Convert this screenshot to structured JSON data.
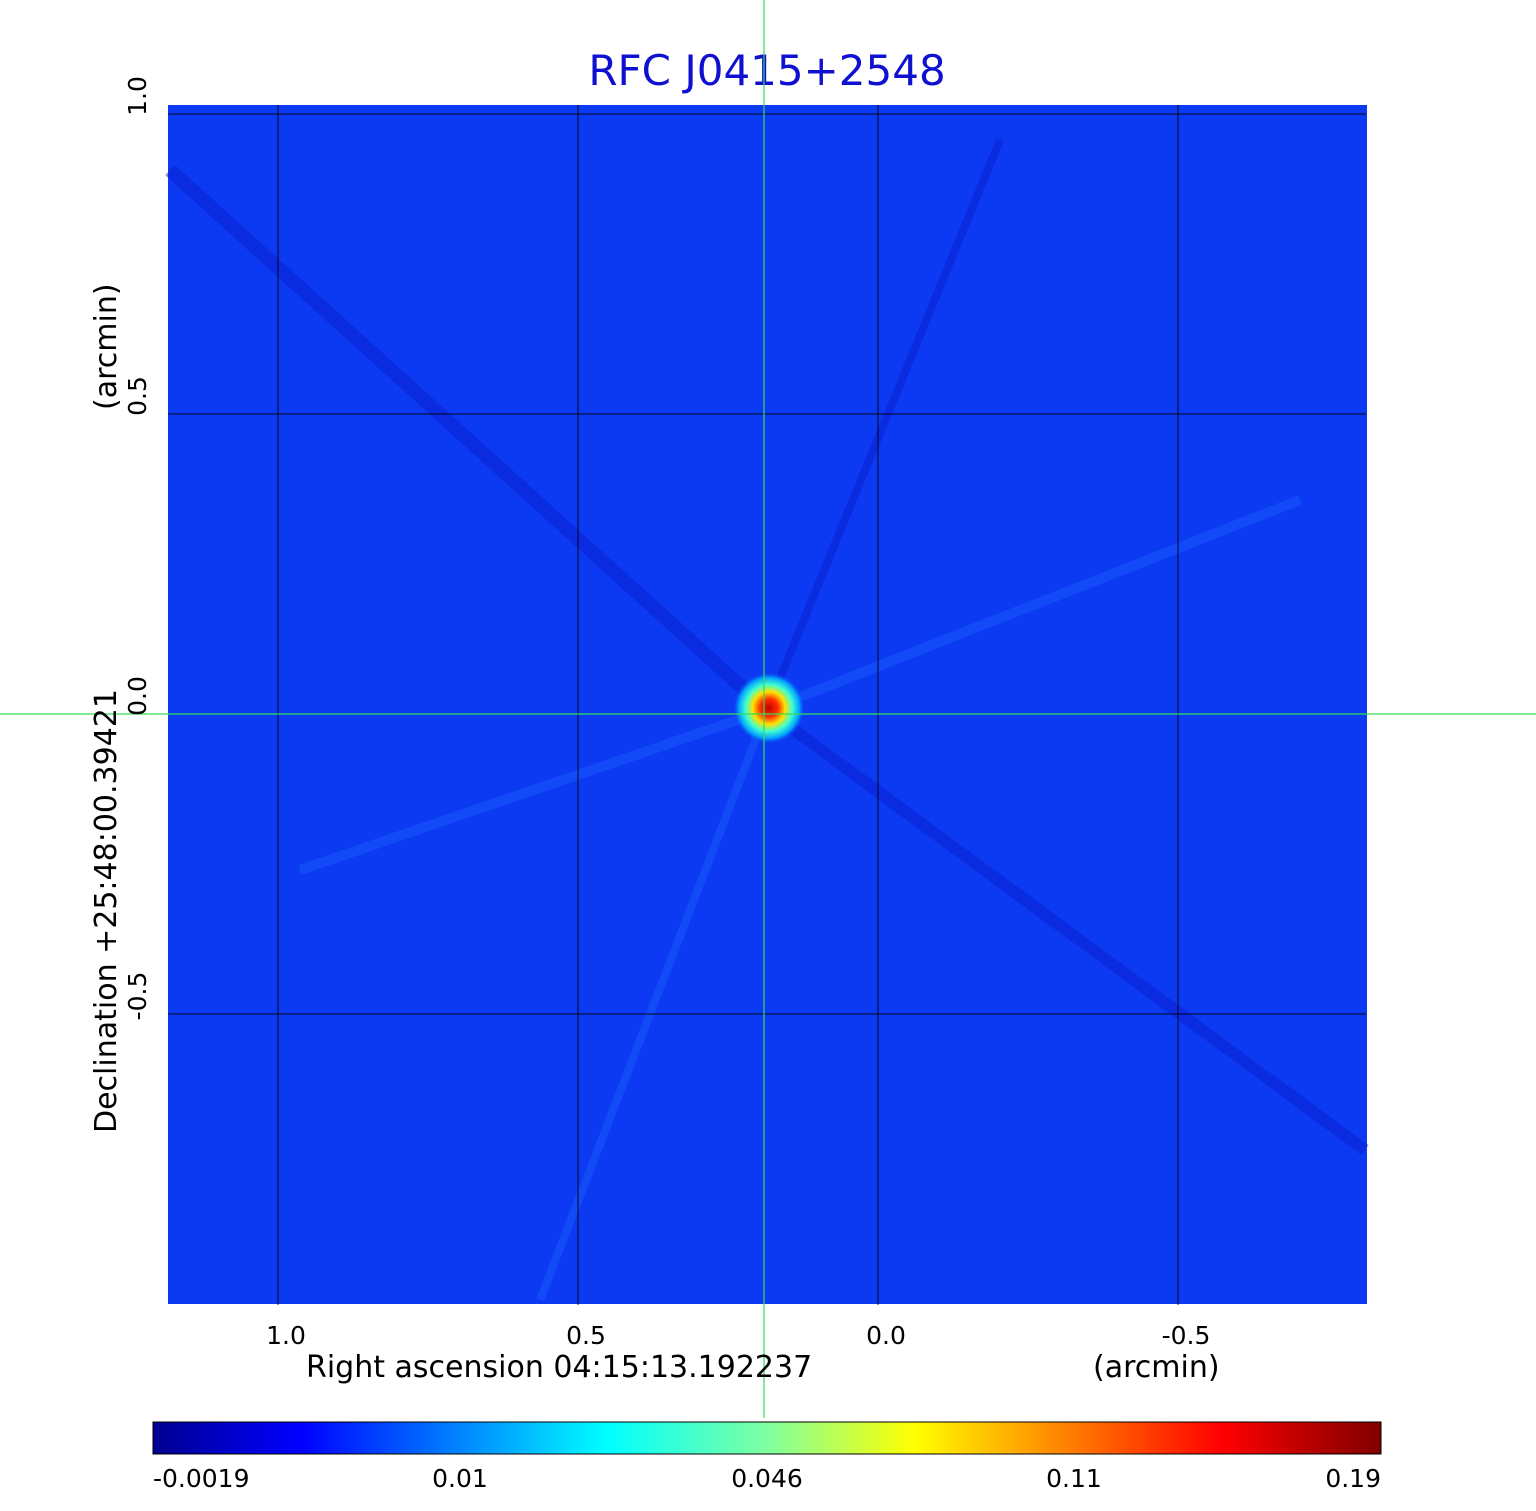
{
  "chart_data": {
    "type": "heatmap",
    "title": "RFC J0415+2548",
    "xlabel": "Right ascension  04:15:13.192237",
    "xunit": "(arcmin)",
    "ylabel": "Declination  +25:48:00.39421",
    "yunit": "(arcmin)",
    "xlim": [
      1.19,
      -0.82
    ],
    "ylim": [
      -0.99,
      1.02
    ],
    "x_ticks": [
      1.0,
      0.5,
      0.0,
      -0.5
    ],
    "x_tick_labels": [
      "1.0",
      "0.5",
      "0.0",
      "-0.5"
    ],
    "y_ticks": [
      1.0,
      0.5,
      0.0,
      -0.5
    ],
    "y_tick_labels": [
      "1.0",
      "0.5",
      "0.0",
      "-0.5"
    ],
    "grid": true,
    "crosshair": {
      "x": 0.19,
      "y": 0.0
    },
    "background_level": -0.0008,
    "peak": {
      "x": 0.19,
      "y": 0.0,
      "value": 0.19
    },
    "colorbar": {
      "ticks": [
        -0.0019,
        0.01,
        0.046,
        0.11,
        0.19
      ],
      "tick_labels": [
        "-0.0019",
        "0.01",
        "0.046",
        "0.11",
        "0.19"
      ],
      "colormap": "jet"
    }
  }
}
